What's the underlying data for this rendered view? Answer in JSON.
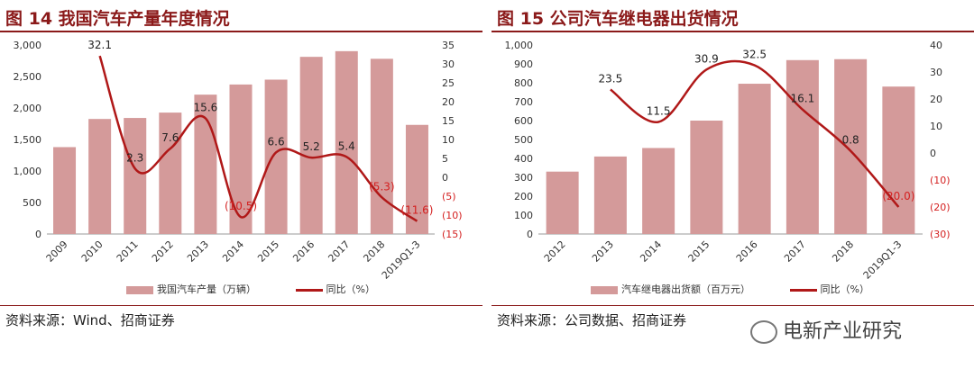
{
  "colors": {
    "bar": "#d49a9a",
    "line": "#b01818",
    "negative_label": "#d42020",
    "title": "#8b1a1a"
  },
  "chart_data": [
    {
      "type": "bar",
      "title": "图 14 我国汽车产量年度情况",
      "categories": [
        "2009",
        "2010",
        "2011",
        "2012",
        "2013",
        "2014",
        "2015",
        "2016",
        "2017",
        "2018",
        "2019Q1-3"
      ],
      "y_left_ticks": [
        "0",
        "500",
        "1,000",
        "1,500",
        "2,000",
        "2,500",
        "3,000"
      ],
      "y_left_lim": [
        0,
        3000
      ],
      "y_right_ticks": [
        "(15)",
        "(10)",
        "(5)",
        "0",
        "5",
        "10",
        "15",
        "20",
        "25",
        "30",
        "35"
      ],
      "y_right_lim": [
        -15,
        35
      ],
      "series": [
        {
          "name": "我国汽车产量（万辆）",
          "type": "bar",
          "axis": "left",
          "values": [
            1379,
            1826,
            1842,
            1927,
            2212,
            2373,
            2450,
            2812,
            2902,
            2781,
            1732
          ]
        },
        {
          "name": "同比（%）",
          "type": "line",
          "axis": "right",
          "values": [
            null,
            32.1,
            2.3,
            7.6,
            15.6,
            -10.5,
            6.6,
            5.2,
            5.4,
            -5.3,
            -11.6
          ],
          "labels": [
            "",
            "32.1",
            "2.3",
            "7.6",
            "15.6",
            "(10.5)",
            "6.6",
            "5.2",
            "5.4",
            "(5.3)",
            "(11.6)"
          ]
        }
      ],
      "legend_position": "bottom",
      "source": "资料来源：Wind、招商证券"
    },
    {
      "type": "bar",
      "title": "图 15 公司汽车继电器出货情况",
      "categories": [
        "2012",
        "2013",
        "2014",
        "2015",
        "2016",
        "2017",
        "2018",
        "2019Q1-3"
      ],
      "y_left_ticks": [
        "0",
        "100",
        "200",
        "300",
        "400",
        "500",
        "600",
        "700",
        "800",
        "900",
        "1,000"
      ],
      "y_left_lim": [
        0,
        1000
      ],
      "y_right_ticks": [
        "(30)",
        "(20)",
        "(10)",
        "0",
        "10",
        "20",
        "30",
        "40"
      ],
      "y_right_lim": [
        -30,
        40
      ],
      "series": [
        {
          "name": "汽车继电器出货额（百万元）",
          "type": "bar",
          "axis": "left",
          "values": [
            330,
            410,
            455,
            600,
            795,
            920,
            925,
            780
          ]
        },
        {
          "name": "同比（%）",
          "type": "line",
          "axis": "right",
          "values": [
            null,
            23.5,
            11.5,
            30.9,
            32.5,
            16.1,
            0.8,
            -20.0
          ],
          "labels": [
            "",
            "23.5",
            "11.5",
            "30.9",
            "32.5",
            "16.1",
            "0.8",
            "(20.0)"
          ]
        }
      ],
      "legend_position": "bottom",
      "source": "资料来源：公司数据、招商证券"
    }
  ],
  "watermark": "电新产业研究"
}
